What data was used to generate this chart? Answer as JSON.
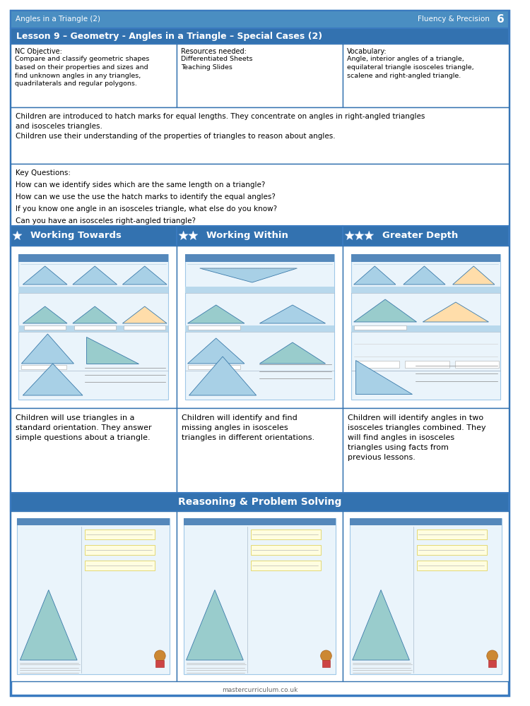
{
  "page_title_left": "Angles in a Triangle (2)",
  "page_title_right": "Fluency & Precision",
  "page_number": "6",
  "lesson_title": "Lesson 9 – Geometry - Angles in a Triangle – Special Cases (2)",
  "nc_objective_title": "NC Objective:",
  "nc_objective_text": "Compare and classify geometric shapes\nbased on their properties and sizes and\nfind unknown angles in any triangles,\nquadrilaterals and regular polygons.",
  "resources_title": "Resources needed:",
  "resources_text": "Differentiated Sheets\nTeaching Slides",
  "vocabulary_title": "Vocabulary:",
  "vocabulary_text": "Angle, interior angles of a triangle,\nequilateral triangle isosceles triangle,\nscalene and right-angled triangle.",
  "intro_text": "Children are introduced to hatch marks for equal lengths. They concentrate on angles in right-angled triangles\nand isosceles triangles.\nChildren use their understanding of the properties of triangles to reason about angles.",
  "key_questions_title": "Key Questions:",
  "key_questions": [
    "How can we identify sides which are the same length on a triangle?",
    "How can we use the use the hatch marks to identify the equal angles?",
    "If you know one angle in an isosceles triangle, what else do you know?",
    "Can you have an isosceles right-angled triangle?"
  ],
  "col1_title": "Working Towards",
  "col2_title": "Working Within",
  "col3_title": "Greater Depth",
  "col1_stars": 1,
  "col2_stars": 2,
  "col3_stars": 3,
  "col1_desc": "Children will use triangles in a\nstandard orientation. They answer\nsimple questions about a triangle.",
  "col2_desc": "Children will identify and find\nmissing angles in isosceles\ntriangles in different orientations.",
  "col3_desc": "Children will identify angles in two\nisosceles triangles combined. They\nwill find angles in isosceles\ntriangles using facts from\nprevious lessons.",
  "reasoning_title": "Reasoning & Problem Solving",
  "footer_text": "mastercurriculum.co.uk",
  "header_bg": "#4a8ec2",
  "lesson_header_bg": "#3372b0",
  "col_header_bg": "#3372b0",
  "reasoning_header_bg": "#3372b0",
  "border_color": "#3372b0",
  "outer_border_color": "#3a7abf",
  "page_bg": "#ffffff",
  "thumbnail_bg": "#eaf4fb",
  "thumb_border": "#a0c8e8",
  "thumb_header_bg": "#5a9fd4",
  "thumb_header_text": "#5a9fd4"
}
